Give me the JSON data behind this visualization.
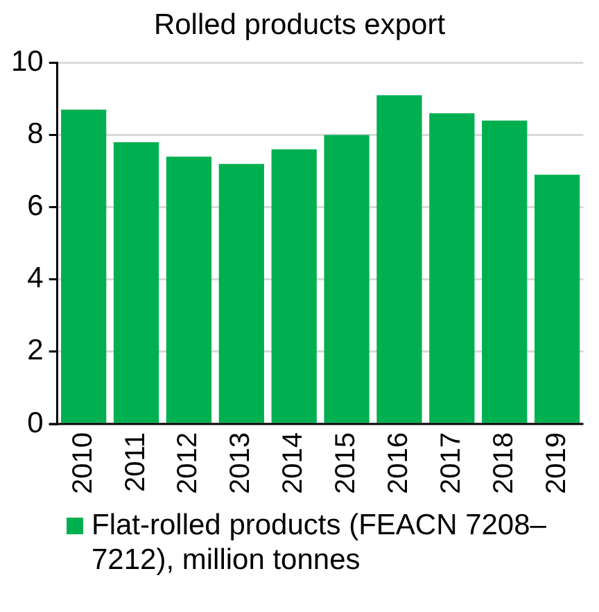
{
  "chart_data": {
    "type": "bar",
    "title": "Rolled products export",
    "categories": [
      "2010",
      "2011",
      "2012",
      "2013",
      "2014",
      "2015",
      "2016",
      "2017",
      "2018",
      "2019"
    ],
    "series": [
      {
        "name": "Flat-rolled products (FEACN 7208–7212), million tonnes",
        "color": "#00b050",
        "values": [
          8.7,
          7.8,
          7.4,
          7.2,
          7.6,
          8.0,
          9.1,
          8.6,
          8.4,
          6.9
        ]
      }
    ],
    "ylim": [
      0,
      10
    ],
    "yticks": [
      0,
      2,
      4,
      6,
      8,
      10
    ],
    "grid": "y",
    "legend": "bottom left"
  }
}
